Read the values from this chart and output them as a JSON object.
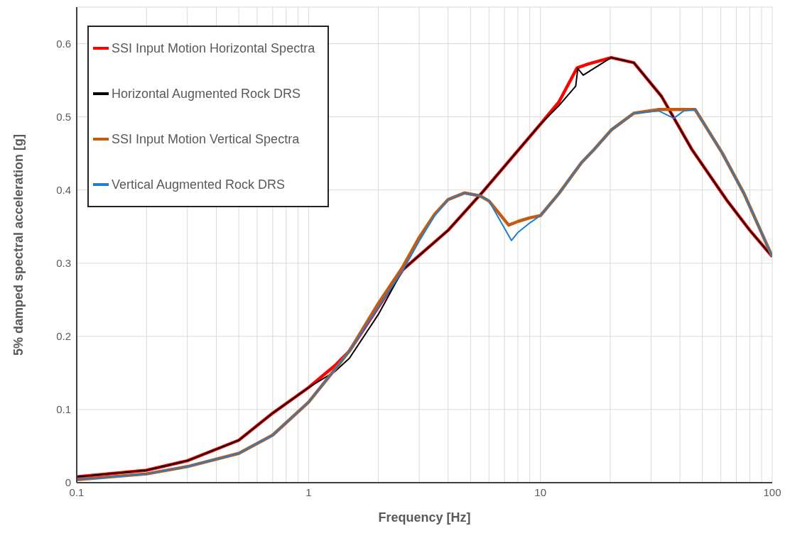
{
  "chart_data": {
    "type": "line",
    "xlabel": "Frequency [Hz]",
    "ylabel": "5% damped spectral acceleration [g]",
    "log": "x",
    "grid": true,
    "legend": "top left",
    "line_style": "solid",
    "marker": "none",
    "xlim": [
      0.1,
      100
    ],
    "ylim": [
      0,
      0.65
    ],
    "xticks": [
      0.1,
      {
        "value": 0.2,
        "label": null
      },
      {
        "value": 0.3,
        "label": null
      },
      {
        "value": 0.4,
        "label": null
      },
      {
        "value": 0.5,
        "label": null
      },
      {
        "value": 0.6,
        "label": null
      },
      {
        "value": 0.7,
        "label": null
      },
      {
        "value": 0.8,
        "label": null
      },
      {
        "value": 0.9,
        "label": null
      },
      1,
      {
        "value": 2,
        "label": null
      },
      {
        "value": 3,
        "label": null
      },
      {
        "value": 4,
        "label": null
      },
      {
        "value": 5,
        "label": null
      },
      {
        "value": 6,
        "label": null
      },
      {
        "value": 7,
        "label": null
      },
      {
        "value": 8,
        "label": null
      },
      {
        "value": 9,
        "label": null
      },
      10,
      {
        "value": 20,
        "label": null
      },
      {
        "value": 30,
        "label": null
      },
      {
        "value": 40,
        "label": null
      },
      {
        "value": 50,
        "label": null
      },
      {
        "value": 60,
        "label": null
      },
      {
        "value": 70,
        "label": null
      },
      {
        "value": 80,
        "label": null
      },
      {
        "value": 90,
        "label": null
      },
      100
    ],
    "yticks": [
      0,
      0.1,
      0.2,
      0.3,
      0.4,
      0.5,
      0.6
    ],
    "series": [
      {
        "name": "SSI Input Motion Horizontal Spectra",
        "color": "#ff0000",
        "x": [
          0.1,
          0.2,
          0.3,
          0.5,
          0.7,
          1.0,
          1.3,
          1.5,
          2,
          2.55,
          4,
          5.66,
          10,
          12,
          14.4,
          16,
          20.2,
          25.3,
          33.3,
          44.9,
          63.7,
          80,
          100
        ],
        "values": [
          0.008,
          0.017,
          0.03,
          0.058,
          0.095,
          0.13,
          0.16,
          0.18,
          0.24,
          0.291,
          0.345,
          0.398,
          0.49,
          0.52,
          0.567,
          0.572,
          0.581,
          0.574,
          0.528,
          0.456,
          0.386,
          0.345,
          0.309
        ]
      },
      {
        "name": "Horizontal Augmented Rock DRS",
        "color": "#000000",
        "x": [
          0.1,
          0.2,
          0.3,
          0.5,
          0.7,
          1.0,
          1.3,
          1.5,
          2,
          2.55,
          4,
          5.66,
          10,
          12,
          14.2,
          14.5,
          15.3,
          20.2,
          25.3,
          33.3,
          44.9,
          63.7,
          80,
          100
        ],
        "values": [
          0.008,
          0.017,
          0.03,
          0.058,
          0.095,
          0.13,
          0.152,
          0.17,
          0.23,
          0.291,
          0.345,
          0.398,
          0.49,
          0.515,
          0.542,
          0.566,
          0.557,
          0.581,
          0.574,
          0.528,
          0.456,
          0.386,
          0.345,
          0.309
        ]
      },
      {
        "name": "SSI Input Motion Vertical Spectra",
        "color": "#c55a11",
        "x": [
          0.1,
          0.2,
          0.3,
          0.5,
          0.7,
          1.0,
          1.3,
          1.5,
          2,
          2.55,
          3,
          3.5,
          4,
          4.7,
          5.5,
          6,
          7.3,
          8,
          9,
          10,
          12,
          15,
          17,
          20.2,
          25.3,
          32.5,
          46.5,
          61,
          75.6,
          100
        ],
        "values": [
          0.004,
          0.012,
          0.022,
          0.04,
          0.065,
          0.11,
          0.155,
          0.18,
          0.245,
          0.295,
          0.335,
          0.367,
          0.387,
          0.396,
          0.392,
          0.385,
          0.352,
          0.357,
          0.362,
          0.365,
          0.395,
          0.437,
          0.455,
          0.482,
          0.505,
          0.51,
          0.51,
          0.45,
          0.395,
          0.309
        ]
      },
      {
        "name": "Vertical Augmented Rock DRS",
        "color": "#1f7fd0",
        "x": [
          0.1,
          0.2,
          0.3,
          0.5,
          0.7,
          1.0,
          1.3,
          1.5,
          2,
          2.55,
          3,
          3.5,
          4,
          4.7,
          5.5,
          6,
          7.5,
          8,
          9,
          10,
          12,
          15,
          17,
          20.2,
          25.3,
          32.5,
          37.6,
          41.5,
          46.5,
          61,
          75.6,
          100
        ],
        "values": [
          0.004,
          0.012,
          0.022,
          0.04,
          0.065,
          0.11,
          0.155,
          0.18,
          0.24,
          0.29,
          0.33,
          0.365,
          0.387,
          0.396,
          0.392,
          0.385,
          0.331,
          0.342,
          0.355,
          0.365,
          0.395,
          0.437,
          0.455,
          0.482,
          0.505,
          0.508,
          0.498,
          0.508,
          0.51,
          0.45,
          0.395,
          0.309
        ]
      }
    ]
  }
}
